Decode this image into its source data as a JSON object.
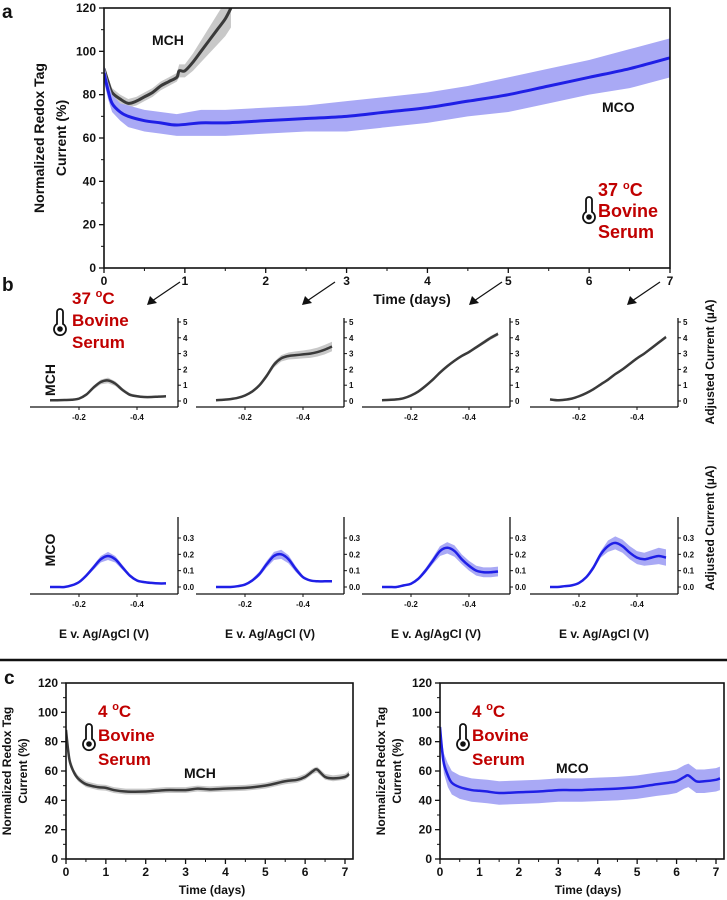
{
  "panel_labels": {
    "a": "a",
    "b": "b",
    "c": "c"
  },
  "colors": {
    "mch": "#3a3a3a",
    "mch_band": "#c8c8c8",
    "mco": "#1f1fe6",
    "mco_band": "#a9a9f5",
    "annotation": "#c00000"
  },
  "panel_a": {
    "annotation": {
      "temp": "37 ",
      "sup": "o",
      "unit": "C",
      "line2": "Bovine",
      "line3": "Serum"
    },
    "label_mch": "MCH",
    "label_mco": "MCO"
  },
  "panel_b": {
    "annotation": {
      "temp": "37 ",
      "sup": "o",
      "unit": "C",
      "line2": "Bovine",
      "line3": "Serum"
    },
    "row_label_mch": "MCH",
    "row_label_mco": "MCO",
    "right_ylabel": "Adjusted Current (µA)",
    "xlabel": "E v. Ag/AgCl (V)",
    "arrow_days": [
      1,
      3,
      5,
      7
    ]
  },
  "panel_c": {
    "left_annotation": {
      "temp": "4 ",
      "sup": "o",
      "unit": "C",
      "line2": "Bovine",
      "line3": "Serum"
    },
    "right_annotation": {
      "temp": "4 ",
      "sup": "o",
      "unit": "C",
      "line2": "Bovine",
      "line3": "Serum"
    },
    "label_mch": "MCH",
    "label_mco": "MCO"
  },
  "chart_data": [
    {
      "id": "a",
      "type": "line",
      "xlabel": "Time (days)",
      "ylabel_line1": "Normalized Redox Tag",
      "ylabel_line2": "Current (%)",
      "xlim": [
        0,
        7
      ],
      "ylim": [
        0,
        120
      ],
      "xticks": [
        "0",
        "1",
        "2",
        "3",
        "4",
        "5",
        "6",
        "7"
      ],
      "yticks": [
        "0",
        "20",
        "40",
        "60",
        "80",
        "100",
        "120"
      ],
      "series": [
        {
          "name": "MCH",
          "color_key": "mch",
          "x": [
            0,
            0.05,
            0.1,
            0.2,
            0.3,
            0.4,
            0.5,
            0.6,
            0.7,
            0.8,
            0.9,
            0.93,
            1.0,
            1.1,
            1.2,
            1.3,
            1.4,
            1.5,
            1.57
          ],
          "y": [
            92,
            86,
            81,
            78,
            76,
            77,
            79,
            81,
            84,
            86,
            88,
            91,
            91,
            95,
            100,
            105,
            110,
            115,
            120
          ],
          "band": [
            2,
            2,
            2,
            2,
            2,
            2,
            2,
            2,
            2,
            2,
            2,
            3,
            3,
            4,
            5,
            6,
            7,
            8,
            9
          ]
        },
        {
          "name": "MCO",
          "color_key": "mco",
          "x": [
            0,
            0.05,
            0.1,
            0.2,
            0.3,
            0.5,
            0.7,
            0.9,
            1.2,
            1.5,
            2,
            2.5,
            3,
            3.5,
            4,
            4.5,
            5,
            5.5,
            6,
            6.5,
            7
          ],
          "y": [
            90,
            82,
            76,
            72,
            70,
            68,
            67,
            66,
            67,
            67,
            68,
            69,
            70,
            72,
            74,
            77,
            80,
            84,
            88,
            92,
            97
          ],
          "band": [
            4,
            4,
            4,
            4,
            5,
            5,
            5,
            5,
            6,
            6,
            6,
            6,
            7,
            7,
            7,
            7,
            8,
            8,
            8,
            9,
            9
          ]
        }
      ]
    },
    {
      "id": "b-mch-1",
      "type": "line",
      "day": 1,
      "row": "MCH",
      "xlim": [
        -0.5,
        -0.1
      ],
      "ylim": [
        0,
        5
      ],
      "xticks": [
        "-0.2",
        "-0.4"
      ],
      "yticks": [
        "0",
        "1",
        "2",
        "3",
        "4",
        "5"
      ],
      "series": [
        {
          "name": "MCH",
          "color_key": "mch",
          "x": [
            -0.1,
            -0.125,
            -0.15,
            -0.175,
            -0.2,
            -0.225,
            -0.25,
            -0.275,
            -0.3,
            -0.325,
            -0.35,
            -0.375,
            -0.4,
            -0.425,
            -0.45,
            -0.475,
            -0.5
          ],
          "y": [
            0.05,
            0.05,
            0.06,
            0.08,
            0.15,
            0.4,
            0.85,
            1.2,
            1.3,
            1.1,
            0.7,
            0.4,
            0.3,
            0.25,
            0.25,
            0.28,
            0.3
          ],
          "band": [
            0.05,
            0.05,
            0.05,
            0.05,
            0.08,
            0.1,
            0.12,
            0.15,
            0.18,
            0.15,
            0.12,
            0.1,
            0.08,
            0.06,
            0.05,
            0.05,
            0.05
          ]
        }
      ]
    },
    {
      "id": "b-mch-3",
      "type": "line",
      "day": 3,
      "row": "MCH",
      "xlim": [
        -0.5,
        -0.1
      ],
      "ylim": [
        0,
        5
      ],
      "xticks": [
        "-0.2",
        "-0.4"
      ],
      "yticks": [
        "0",
        "1",
        "2",
        "3",
        "4",
        "5"
      ],
      "series": [
        {
          "name": "MCH",
          "color_key": "mch",
          "x": [
            -0.1,
            -0.125,
            -0.15,
            -0.175,
            -0.2,
            -0.225,
            -0.25,
            -0.275,
            -0.3,
            -0.325,
            -0.35,
            -0.375,
            -0.4,
            -0.425,
            -0.45,
            -0.475,
            -0.5
          ],
          "y": [
            0.05,
            0.08,
            0.12,
            0.2,
            0.35,
            0.6,
            1.0,
            1.6,
            2.3,
            2.7,
            2.85,
            2.9,
            2.95,
            3.0,
            3.1,
            3.25,
            3.45
          ],
          "band": [
            0.05,
            0.05,
            0.05,
            0.06,
            0.08,
            0.1,
            0.12,
            0.15,
            0.18,
            0.2,
            0.22,
            0.24,
            0.25,
            0.27,
            0.28,
            0.3,
            0.3
          ]
        }
      ]
    },
    {
      "id": "b-mch-5",
      "type": "line",
      "day": 5,
      "row": "MCH",
      "xlim": [
        -0.5,
        -0.1
      ],
      "ylim": [
        0,
        5
      ],
      "xticks": [
        "-0.2",
        "-0.4"
      ],
      "yticks": [
        "0",
        "1",
        "2",
        "3",
        "4",
        "5"
      ],
      "series": [
        {
          "name": "MCH",
          "color_key": "mch",
          "x": [
            -0.1,
            -0.125,
            -0.15,
            -0.175,
            -0.2,
            -0.225,
            -0.25,
            -0.275,
            -0.3,
            -0.325,
            -0.35,
            -0.375,
            -0.4,
            -0.425,
            -0.45,
            -0.475,
            -0.5
          ],
          "y": [
            0.05,
            0.07,
            0.1,
            0.18,
            0.35,
            0.6,
            0.95,
            1.35,
            1.8,
            2.2,
            2.55,
            2.85,
            3.1,
            3.4,
            3.7,
            4.0,
            4.25
          ],
          "band": [
            0.04,
            0.04,
            0.04,
            0.05,
            0.05,
            0.06,
            0.06,
            0.07,
            0.07,
            0.08,
            0.08,
            0.09,
            0.1,
            0.1,
            0.12,
            0.12,
            0.12
          ]
        }
      ]
    },
    {
      "id": "b-mch-7",
      "type": "line",
      "day": 7,
      "row": "MCH",
      "xlim": [
        -0.5,
        -0.1
      ],
      "ylim": [
        0,
        5
      ],
      "xticks": [
        "-0.2",
        "-0.4"
      ],
      "yticks": [
        "0",
        "1",
        "2",
        "3",
        "4",
        "5"
      ],
      "series": [
        {
          "name": "MCH",
          "color_key": "mch",
          "x": [
            -0.1,
            -0.125,
            -0.15,
            -0.175,
            -0.2,
            -0.225,
            -0.25,
            -0.275,
            -0.3,
            -0.325,
            -0.35,
            -0.375,
            -0.4,
            -0.425,
            -0.45,
            -0.475,
            -0.5
          ],
          "y": [
            0.1,
            0.05,
            0.08,
            0.15,
            0.3,
            0.5,
            0.75,
            1.05,
            1.35,
            1.7,
            2.0,
            2.35,
            2.7,
            3.0,
            3.35,
            3.7,
            4.05
          ],
          "band": [
            0.04,
            0.04,
            0.04,
            0.04,
            0.05,
            0.05,
            0.05,
            0.06,
            0.06,
            0.06,
            0.07,
            0.07,
            0.08,
            0.08,
            0.09,
            0.1,
            0.1
          ]
        }
      ]
    },
    {
      "id": "b-mco-1",
      "type": "line",
      "day": 1,
      "row": "MCO",
      "xlim": [
        -0.5,
        -0.1
      ],
      "ylim": [
        0,
        0.3
      ],
      "xticks": [
        "-0.2",
        "-0.4"
      ],
      "yticks": [
        "0.0",
        "0.1",
        "0.2",
        "0.3"
      ],
      "series": [
        {
          "name": "MCO",
          "color_key": "mco",
          "x": [
            -0.1,
            -0.125,
            -0.15,
            -0.175,
            -0.2,
            -0.225,
            -0.25,
            -0.275,
            -0.3,
            -0.325,
            -0.35,
            -0.375,
            -0.4,
            -0.425,
            -0.45,
            -0.475,
            -0.5
          ],
          "y": [
            0.0,
            0.0,
            0.0,
            0.01,
            0.03,
            0.07,
            0.12,
            0.17,
            0.19,
            0.17,
            0.12,
            0.07,
            0.04,
            0.03,
            0.025,
            0.022,
            0.022
          ],
          "band": [
            0.003,
            0.003,
            0.003,
            0.004,
            0.006,
            0.01,
            0.015,
            0.02,
            0.025,
            0.02,
            0.015,
            0.01,
            0.006,
            0.004,
            0.003,
            0.003,
            0.003
          ]
        }
      ]
    },
    {
      "id": "b-mco-3",
      "type": "line",
      "day": 3,
      "row": "MCO",
      "xlim": [
        -0.5,
        -0.1
      ],
      "ylim": [
        0,
        0.3
      ],
      "xticks": [
        "-0.2",
        "-0.4"
      ],
      "yticks": [
        "0.0",
        "0.1",
        "0.2",
        "0.3"
      ],
      "series": [
        {
          "name": "MCO",
          "color_key": "mco",
          "x": [
            -0.1,
            -0.125,
            -0.15,
            -0.175,
            -0.2,
            -0.225,
            -0.25,
            -0.275,
            -0.3,
            -0.325,
            -0.35,
            -0.375,
            -0.4,
            -0.425,
            -0.45,
            -0.475,
            -0.5
          ],
          "y": [
            0.0,
            0.0,
            0.0,
            0.005,
            0.015,
            0.04,
            0.08,
            0.14,
            0.19,
            0.2,
            0.17,
            0.11,
            0.06,
            0.04,
            0.035,
            0.035,
            0.035
          ],
          "band": [
            0.003,
            0.003,
            0.003,
            0.004,
            0.006,
            0.01,
            0.015,
            0.02,
            0.025,
            0.028,
            0.025,
            0.018,
            0.01,
            0.005,
            0.004,
            0.004,
            0.004
          ]
        }
      ]
    },
    {
      "id": "b-mco-5",
      "type": "line",
      "day": 5,
      "row": "MCO",
      "xlim": [
        -0.5,
        -0.1
      ],
      "ylim": [
        0,
        0.3
      ],
      "xticks": [
        "-0.2",
        "-0.4"
      ],
      "yticks": [
        "0.0",
        "0.1",
        "0.2",
        "0.3"
      ],
      "series": [
        {
          "name": "MCO",
          "color_key": "mco",
          "x": [
            -0.1,
            -0.125,
            -0.15,
            -0.175,
            -0.2,
            -0.225,
            -0.25,
            -0.275,
            -0.3,
            -0.325,
            -0.35,
            -0.375,
            -0.4,
            -0.425,
            -0.45,
            -0.475,
            -0.5
          ],
          "y": [
            0.0,
            0.0,
            0.0,
            0.01,
            0.02,
            0.05,
            0.1,
            0.16,
            0.22,
            0.24,
            0.22,
            0.17,
            0.13,
            0.1,
            0.09,
            0.09,
            0.095
          ],
          "band": [
            0.003,
            0.003,
            0.003,
            0.004,
            0.006,
            0.01,
            0.015,
            0.02,
            0.03,
            0.035,
            0.035,
            0.03,
            0.03,
            0.03,
            0.03,
            0.03,
            0.03
          ]
        }
      ]
    },
    {
      "id": "b-mco-7",
      "type": "line",
      "day": 7,
      "row": "MCO",
      "xlim": [
        -0.5,
        -0.1
      ],
      "ylim": [
        0,
        0.3
      ],
      "xticks": [
        "-0.2",
        "-0.4"
      ],
      "yticks": [
        "0.0",
        "0.1",
        "0.2",
        "0.3"
      ],
      "series": [
        {
          "name": "MCO",
          "color_key": "mco",
          "x": [
            -0.1,
            -0.125,
            -0.15,
            -0.175,
            -0.2,
            -0.225,
            -0.25,
            -0.275,
            -0.3,
            -0.325,
            -0.35,
            -0.375,
            -0.4,
            -0.425,
            -0.45,
            -0.475,
            -0.5
          ],
          "y": [
            0.0,
            0.0,
            0.005,
            0.01,
            0.025,
            0.06,
            0.12,
            0.2,
            0.25,
            0.27,
            0.25,
            0.21,
            0.18,
            0.17,
            0.18,
            0.19,
            0.18
          ],
          "band": [
            0.003,
            0.003,
            0.003,
            0.004,
            0.006,
            0.01,
            0.015,
            0.02,
            0.035,
            0.04,
            0.04,
            0.04,
            0.04,
            0.04,
            0.045,
            0.05,
            0.05
          ]
        }
      ]
    },
    {
      "id": "c-mch",
      "type": "line",
      "xlabel": "Time (days)",
      "ylabel_line1": "Normalized Redox Tag",
      "ylabel_line2": "Current (%)",
      "xlim": [
        0,
        7
      ],
      "ylim": [
        0,
        120
      ],
      "xticks": [
        "0",
        "1",
        "2",
        "3",
        "4",
        "5",
        "6",
        "7"
      ],
      "yticks": [
        "0",
        "20",
        "40",
        "60",
        "80",
        "100",
        "120"
      ],
      "series": [
        {
          "name": "MCH",
          "color_key": "mch",
          "x": [
            0,
            0.05,
            0.1,
            0.2,
            0.3,
            0.5,
            0.8,
            1.0,
            1.2,
            1.5,
            2,
            2.5,
            3,
            3.3,
            3.6,
            4,
            4.5,
            5,
            5.5,
            5.8,
            6.0,
            6.2,
            6.3,
            6.5,
            6.7,
            7.0,
            7.1
          ],
          "y": [
            88,
            75,
            66,
            59,
            55,
            51,
            49,
            48.5,
            47,
            46,
            46,
            47,
            47,
            48,
            47.5,
            48,
            48.5,
            50,
            53,
            54,
            56,
            60,
            61,
            56,
            55,
            56,
            58
          ],
          "band": [
            3,
            3,
            3,
            2,
            2,
            2,
            2,
            2,
            2,
            2,
            2,
            2,
            2,
            2,
            2,
            2,
            2,
            2,
            2,
            2,
            2,
            2,
            2,
            2,
            2,
            2,
            2
          ]
        }
      ]
    },
    {
      "id": "c-mco",
      "type": "line",
      "xlabel": "Time (days)",
      "ylabel_line1": "Normalized Redox Tag",
      "ylabel_line2": "Current (%)",
      "xlim": [
        0,
        7
      ],
      "ylim": [
        0,
        120
      ],
      "xticks": [
        "0",
        "1",
        "2",
        "3",
        "4",
        "5",
        "6",
        "7"
      ],
      "yticks": [
        "0",
        "20",
        "40",
        "60",
        "80",
        "100",
        "120"
      ],
      "series": [
        {
          "name": "MCO",
          "color_key": "mco",
          "x": [
            0,
            0.05,
            0.1,
            0.2,
            0.3,
            0.5,
            0.8,
            1.0,
            1.2,
            1.5,
            2,
            2.5,
            3,
            3.3,
            3.6,
            4,
            4.5,
            5,
            5.5,
            5.8,
            6.0,
            6.2,
            6.3,
            6.5,
            6.7,
            7.0,
            7.1
          ],
          "y": [
            90,
            75,
            65,
            57,
            52,
            49,
            47,
            46.5,
            46,
            45,
            45.5,
            46,
            47,
            47,
            47,
            47.5,
            48,
            49,
            51,
            52,
            53,
            56,
            57,
            53,
            53,
            54,
            55
          ],
          "band": [
            4,
            6,
            7,
            8,
            8,
            8,
            8,
            8,
            8,
            8,
            8,
            8,
            8,
            8,
            8,
            8,
            8,
            8,
            8,
            8,
            8,
            8,
            8,
            8,
            8,
            8,
            8
          ]
        }
      ]
    }
  ]
}
